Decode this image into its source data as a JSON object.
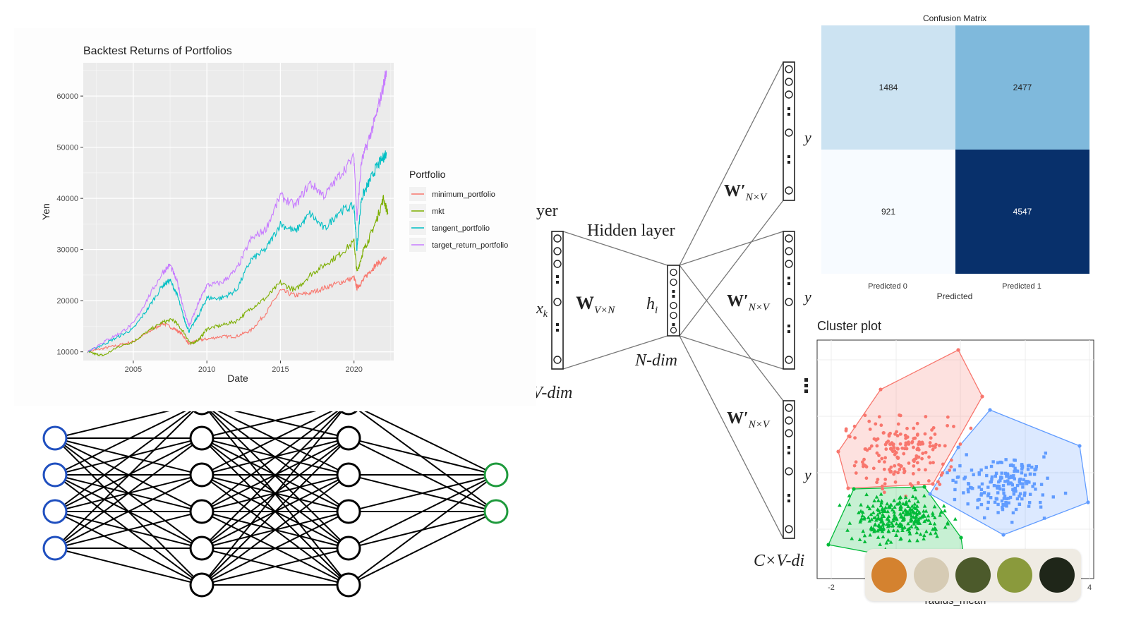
{
  "backtest": {
    "title": "Backtest Returns of Portfolios",
    "xlabel": "Date",
    "ylabel": "Yen",
    "legend_title": "Portfolio",
    "y_ticks": [
      "10000",
      "20000",
      "30000",
      "40000",
      "50000",
      "60000"
    ],
    "x_ticks": [
      "2005",
      "2010",
      "2015",
      "2020"
    ]
  },
  "confusion": {
    "title": "Confusion Matrix",
    "xlabel": "Predicted",
    "col_labels": [
      "Predicted 0",
      "Predicted 1"
    ]
  },
  "cluster": {
    "title": "Cluster plot",
    "xlabel": "radius_mean",
    "x_ticks": [
      "-2",
      "4"
    ]
  },
  "word2vec": {
    "input_label_partial": "yer",
    "hidden_layer_label": "Hidden layer",
    "w_in_label": "W",
    "w_in_sub": "V×N",
    "h_label": "h",
    "h_sub": "i",
    "n_dim_label": "N-dim",
    "v_dim_partial": "V-dim",
    "x_partial": "x",
    "x_sub": "k",
    "w_out_label": "W′",
    "w_out_sub": "N×V",
    "cv_dim_partial": "C×V-di",
    "y_partial": "y"
  },
  "palette": {
    "colors": [
      "#d4822f",
      "#d6cbb4",
      "#4c5a2b",
      "#8a9a3c",
      "#1f2619"
    ]
  },
  "chart_data": [
    {
      "type": "line",
      "title": "Backtest Returns of Portfolios",
      "xlabel": "Date",
      "ylabel": "Yen",
      "xlim": [
        2001.6,
        2022.7
      ],
      "ylim": [
        8300,
        66500
      ],
      "grid": true,
      "legend": {
        "title": "Portfolio",
        "placement": "right"
      },
      "series": [
        {
          "name": "minimum_portfolio",
          "color": "#f8766d",
          "x": [
            2001.9,
            2003,
            2004,
            2005,
            2006,
            2007,
            2007.8,
            2008.3,
            2008.8,
            2009.3,
            2010,
            2011,
            2012,
            2013,
            2014,
            2015,
            2016,
            2017,
            2018,
            2019,
            2020,
            2020.2,
            2020.5,
            2021,
            2021.5,
            2022.2
          ],
          "y": [
            10000,
            10700,
            11300,
            12000,
            13800,
            15600,
            14500,
            13500,
            11500,
            12200,
            12500,
            13000,
            13000,
            14200,
            17500,
            22000,
            21000,
            21500,
            22500,
            23500,
            24500,
            22500,
            23500,
            25500,
            27000,
            28500
          ]
        },
        {
          "name": "mkt",
          "color": "#7cae00",
          "x": [
            2001.9,
            2002.5,
            2003,
            2004,
            2005,
            2006,
            2007,
            2007.7,
            2008.4,
            2008.9,
            2009.5,
            2010,
            2011,
            2012,
            2013,
            2014,
            2015,
            2016,
            2017,
            2018,
            2019,
            2020,
            2020.2,
            2020.6,
            2021,
            2021.5,
            2022,
            2022.3
          ],
          "y": [
            10000,
            9500,
            9300,
            11000,
            12000,
            14000,
            15800,
            16300,
            14000,
            11500,
            12500,
            14500,
            15200,
            16000,
            18500,
            20500,
            23500,
            22000,
            25000,
            27000,
            29000,
            31500,
            25500,
            29500,
            32000,
            35500,
            40000,
            37000
          ]
        },
        {
          "name": "tangent_portfolio",
          "color": "#00bfc4",
          "x": [
            2001.9,
            2003,
            2004,
            2005,
            2006,
            2007,
            2007.5,
            2008,
            2008.5,
            2008.8,
            2009.5,
            2010,
            2011,
            2012,
            2013,
            2014,
            2015,
            2016,
            2017,
            2018,
            2019,
            2020,
            2020.2,
            2020.5,
            2021,
            2021.5,
            2022,
            2022.2
          ],
          "y": [
            10000,
            11500,
            13000,
            14500,
            18500,
            23000,
            24000,
            21000,
            16000,
            14000,
            17500,
            20500,
            20500,
            22000,
            28000,
            30000,
            35000,
            33500,
            37000,
            34000,
            37500,
            38500,
            30000,
            40000,
            43000,
            46000,
            48000,
            49000
          ]
        },
        {
          "name": "target_return_portfolio",
          "color": "#c77cff",
          "x": [
            2001.9,
            2003,
            2004,
            2005,
            2006,
            2007,
            2007.5,
            2008,
            2008.5,
            2008.8,
            2009.5,
            2010,
            2011,
            2012,
            2013,
            2014,
            2015,
            2016,
            2017,
            2018,
            2019,
            2020,
            2020.2,
            2020.5,
            2021,
            2021.5,
            2022,
            2022.2
          ],
          "y": [
            10000,
            12000,
            13500,
            15500,
            20500,
            25500,
            27000,
            23500,
            17500,
            15000,
            20000,
            23000,
            23500,
            26000,
            32000,
            34000,
            40500,
            38500,
            43000,
            40500,
            44500,
            48000,
            36000,
            47000,
            51500,
            56000,
            62000,
            65000
          ]
        }
      ]
    },
    {
      "type": "heatmap",
      "title": "Confusion Matrix",
      "xlabel": "Predicted",
      "columns": [
        "Predicted 0",
        "Predicted 1"
      ],
      "values": [
        [
          1484,
          2477
        ],
        [
          921,
          4547
        ]
      ]
    },
    {
      "type": "scatter",
      "title": "Cluster plot",
      "xlabel": "radius_mean",
      "x_ticks": [
        -2,
        4
      ],
      "series": [
        {
          "name": "",
          "color": "#f8766d",
          "shape": "circle",
          "points": 180
        },
        {
          "name": "",
          "color": "#619cff",
          "shape": "square",
          "points": 180
        },
        {
          "name": "",
          "color": "#00ba38",
          "shape": "triangle",
          "points": 260
        }
      ]
    }
  ]
}
